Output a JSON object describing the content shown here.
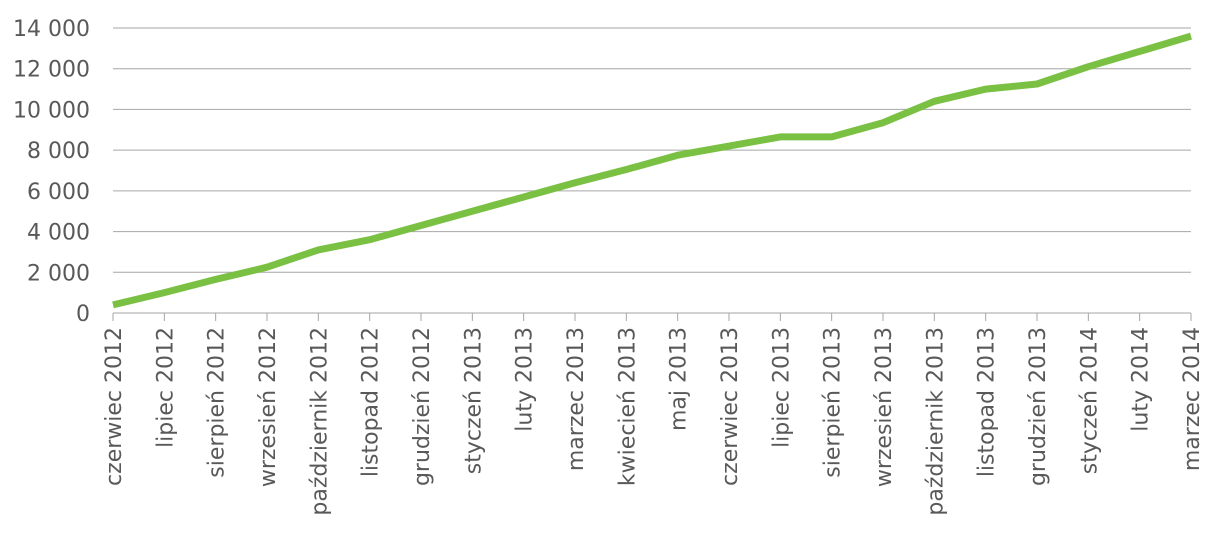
{
  "chart_data": {
    "type": "line",
    "title": "",
    "xlabel": "",
    "ylabel": "",
    "categories": [
      "czerwiec 2012",
      "lipiec 2012",
      "sierpień 2012",
      "wrzesień 2012",
      "październik 2012",
      "listopad 2012",
      "grudzień 2012",
      "styczeń 2013",
      "luty 2013",
      "marzec 2013",
      "kwiecień 2013",
      "maj 2013",
      "czerwiec 2013",
      "lipiec 2013",
      "sierpień 2013",
      "wrzesień 2013",
      "październik 2013",
      "listopad 2013",
      "grudzień 2013",
      "styczeń 2014",
      "luty 2014",
      "marzec 2014"
    ],
    "series": [
      {
        "color": "#7ac143",
        "values": [
          400,
          1000,
          1650,
          2250,
          3100,
          3600,
          4300,
          5000,
          5700,
          6400,
          7050,
          7750,
          8200,
          8650,
          8650,
          9350,
          10400,
          11000,
          11250,
          12100,
          12850,
          13600
        ]
      }
    ],
    "ylim": [
      0,
      14000
    ],
    "yticks": [
      0,
      2000,
      4000,
      6000,
      8000,
      10000,
      12000,
      14000
    ],
    "ytick_labels": [
      "0",
      "2 000",
      "4 000",
      "6 000",
      "8 000",
      "10 000",
      "12 000",
      "14 000"
    ],
    "grid": true,
    "legend": "none"
  }
}
